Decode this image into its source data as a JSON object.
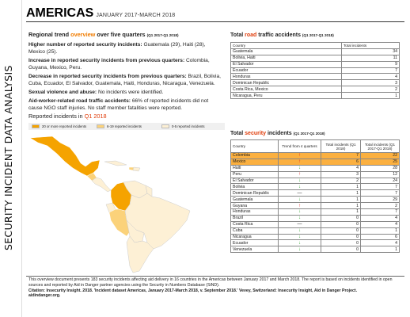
{
  "side_label": "SECURITY INCIDENT DATA ANALYSIS",
  "header": {
    "title": "AMERICAS",
    "subtitle": "JANUARY 2017-MARCH 2018"
  },
  "overview": {
    "head_prefix": "Regional trend ",
    "head_accent": "overview",
    "head_suffix": " over five quarters ",
    "head_period": "(Q1 2017-Q1 2018)",
    "items": [
      {
        "label": "Higher number of reported security incidents:",
        "text": " Guatemala (29), Haiti (28), Mexico (25)."
      },
      {
        "label": "Increase in reported security incidents from previous quarters:",
        "text": " Colombia, Guyana, Mexico, Peru."
      },
      {
        "label": "Decrease in reported security incidents from previous quarters:",
        "text": " Brazil, Bolivia, Cuba, Ecuador, El Salvador, Guatemala, Haiti, Honduras, Nicaragua, Venezuela."
      },
      {
        "label": "Sexual violence and abuse:",
        "text": " No incidents were identified."
      },
      {
        "label": "Aid-worker-related road traffic accidents:",
        "text": " 66% of reported incidents did not cause NGO staff injuries. No staff member fatalities were reported."
      }
    ]
  },
  "map": {
    "title_prefix": "Reported incidents in ",
    "title_accent": "Q1 2018",
    "legend": [
      {
        "label": "20 or more reported incidents",
        "color": "#f5a300"
      },
      {
        "label": "6-19 reported incidents",
        "color": "#fbd27a"
      },
      {
        "label": "0-5 reported incidents",
        "color": "#fdf0d5"
      }
    ]
  },
  "road_table": {
    "title_prefix": "Total ",
    "title_accent": "road",
    "title_suffix": " traffic accidents ",
    "period": "(Q1 2017-Q1 2018)",
    "headers": [
      "Country",
      "Total incidents"
    ],
    "rows": [
      [
        "Guatemala",
        "34"
      ],
      [
        "Bolivia, Haiti",
        "11"
      ],
      [
        "El Salvador",
        "9"
      ],
      [
        "Ecuador",
        "7"
      ],
      [
        "Honduras",
        "4"
      ],
      [
        "Dominican Republic",
        "3"
      ],
      [
        "Costa Rica, Mexico",
        "2"
      ],
      [
        "Nicaragua, Peru",
        "1"
      ]
    ]
  },
  "security_table": {
    "title_prefix": "Total ",
    "title_accent": "security",
    "title_suffix": " incidents ",
    "period": "(Q1 2017-Q1 2018)",
    "headers": [
      "Country",
      "Trend from 4 quarters",
      "Total incidents (Q1 2018)",
      "Total incidents (Q1 2017-Q1 2018)"
    ],
    "rows": [
      {
        "country": "Colombia",
        "trend": "up",
        "q1": "7",
        "total": "22",
        "highlight": true
      },
      {
        "country": "Mexico",
        "trend": "up",
        "q1": "6",
        "total": "25",
        "highlight": true
      },
      {
        "country": "Haiti",
        "trend": "down",
        "q1": "4",
        "total": "28",
        "highlight": false
      },
      {
        "country": "Peru",
        "trend": "up",
        "q1": "3",
        "total": "12",
        "highlight": false
      },
      {
        "country": "El Salvador",
        "trend": "down",
        "q1": "2",
        "total": "24",
        "highlight": false
      },
      {
        "country": "Bolivia",
        "trend": "down",
        "q1": "1",
        "total": "7",
        "highlight": false
      },
      {
        "country": "Dominican Republic",
        "trend": "flat",
        "q1": "1",
        "total": "7",
        "highlight": false
      },
      {
        "country": "Guatemala",
        "trend": "down",
        "q1": "1",
        "total": "29",
        "highlight": false
      },
      {
        "country": "Guyana",
        "trend": "up",
        "q1": "1",
        "total": "2",
        "highlight": false
      },
      {
        "country": "Honduras",
        "trend": "down",
        "q1": "1",
        "total": "7",
        "highlight": false
      },
      {
        "country": "Brazil",
        "trend": "down",
        "q1": "0",
        "total": "4",
        "highlight": false
      },
      {
        "country": "Costa Rica",
        "trend": "flat",
        "q1": "0",
        "total": "4",
        "highlight": false
      },
      {
        "country": "Cuba",
        "trend": "down",
        "q1": "0",
        "total": "1",
        "highlight": false
      },
      {
        "country": "Nicaragua",
        "trend": "down",
        "q1": "0",
        "total": "6",
        "highlight": false
      },
      {
        "country": "Ecuador",
        "trend": "down",
        "q1": "0",
        "total": "4",
        "highlight": false
      },
      {
        "country": "Venezuela",
        "trend": "down",
        "q1": "0",
        "total": "1",
        "highlight": false
      }
    ]
  },
  "footer": {
    "line1": "This overview document presents 183 security incidents affecting aid delivery in 16 countries in the Americas between January 2017 and March 2018. The report is based on incidents identified in open sources and reported by Aid in Danger partner agencies using the Security in Numbers Database (SiND).",
    "citation": "Citation: Insecurity Insight. 2018. 'Incident dataset Americas, January 2017-March 2018, v. September 2018.' Vevey, Switzerland: Insecurity Insight, Aid in Danger Project.",
    "url": "aidindanger.org."
  },
  "colors": {
    "accent": "#e03c0a",
    "highlight": "#fbb040",
    "up": "#e02020",
    "down": "#3aaa35"
  }
}
